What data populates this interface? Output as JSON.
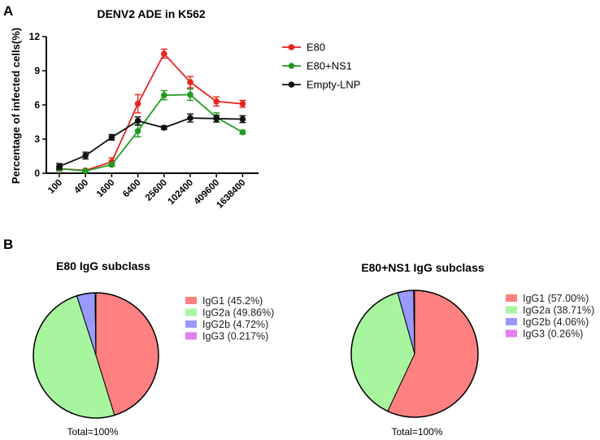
{
  "panel_labels": {
    "a": "A",
    "b": "B"
  },
  "chart_data": [
    {
      "type": "line",
      "title": "DENV2 ADE in K562",
      "xlabel": "",
      "ylabel": "Percentage of infected cells(%)",
      "categories": [
        "100",
        "400",
        "1600",
        "6400",
        "25600",
        "102400",
        "409600",
        "1638400"
      ],
      "ylim": [
        0,
        12
      ],
      "yticks": [
        "0",
        "3",
        "6",
        "9",
        "12"
      ],
      "series": [
        {
          "name": "E80",
          "color": "#e8231e",
          "values": [
            0.4,
            0.25,
            1.0,
            6.1,
            10.5,
            8.0,
            6.3,
            6.1
          ],
          "errors": [
            0.2,
            0.1,
            0.35,
            0.8,
            0.4,
            0.5,
            0.4,
            0.3
          ]
        },
        {
          "name": "E80+NS1",
          "color": "#229a22",
          "values": [
            0.4,
            0.2,
            0.75,
            3.7,
            6.85,
            6.9,
            4.9,
            3.6
          ],
          "errors": [
            0.1,
            0.1,
            0.15,
            0.5,
            0.4,
            0.5,
            0.4,
            0.15
          ]
        },
        {
          "name": "Empty-LNP",
          "color": "#111111",
          "values": [
            0.6,
            1.55,
            3.15,
            4.6,
            4.0,
            4.85,
            4.8,
            4.75
          ],
          "errors": [
            0.25,
            0.3,
            0.25,
            0.35,
            0.15,
            0.35,
            0.3,
            0.3
          ]
        }
      ]
    },
    {
      "type": "pie",
      "title": "E80 IgG subclass",
      "footer": "Total=100%",
      "slices": [
        {
          "label": "IgG1 (45.2%)",
          "value": 45.2,
          "color": "#ff8080"
        },
        {
          "label": "IgG2a (49.86%)",
          "value": 49.86,
          "color": "#a8f5a0"
        },
        {
          "label": "IgG2b (4.72%)",
          "value": 4.72,
          "color": "#9999ff"
        },
        {
          "label": "IgG3 (0.217%)",
          "value": 0.217,
          "color": "#e280f0"
        }
      ]
    },
    {
      "type": "pie",
      "title": "E80+NS1 IgG subclass",
      "footer": "Total=100%",
      "slices": [
        {
          "label": "IgG1 (57.00%)",
          "value": 57.0,
          "color": "#ff8080"
        },
        {
          "label": "IgG2a (38.71%)",
          "value": 38.71,
          "color": "#a8f5a0"
        },
        {
          "label": "IgG2b (4.06%)",
          "value": 4.06,
          "color": "#9999ff"
        },
        {
          "label": "IgG3 (0.26%)",
          "value": 0.26,
          "color": "#e280f0"
        }
      ]
    }
  ]
}
